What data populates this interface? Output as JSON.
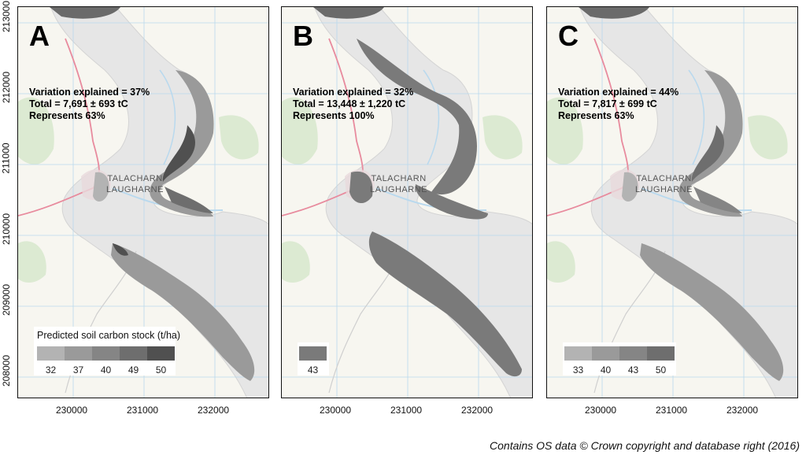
{
  "y_ticks": [
    "213000",
    "212000",
    "211000",
    "210000",
    "209000",
    "208000"
  ],
  "x_ticks": [
    "230000",
    "231000",
    "232000"
  ],
  "place_names": [
    "TALACHARN",
    "LAUGHARNE"
  ],
  "panels": [
    {
      "label": "A",
      "stats": [
        "Variation explained = 37%",
        "Total = 7,691 ± 693 tC",
        "Represents 63%"
      ],
      "legend": {
        "title": "Predicted soil carbon stock (t/ha)",
        "items": [
          {
            "label": "32",
            "color": "#b3b3b3"
          },
          {
            "label": "37",
            "color": "#9a9a9a"
          },
          {
            "label": "40",
            "color": "#858585"
          },
          {
            "label": "49",
            "color": "#6e6e6e"
          },
          {
            "label": "50",
            "color": "#505050"
          }
        ]
      }
    },
    {
      "label": "B",
      "stats": [
        "Variation explained = 32%",
        "Total = 13,448 ± 1,220 tC",
        "Represents 100%"
      ],
      "legend": {
        "title": "",
        "items": [
          {
            "label": "43",
            "color": "#7a7a7a"
          }
        ]
      }
    },
    {
      "label": "C",
      "stats": [
        "Variation explained = 44%",
        "Total = 7,817 ± 699 tC",
        "Represents 63%"
      ],
      "legend": {
        "title": "",
        "items": [
          {
            "label": "33",
            "color": "#b3b3b3"
          },
          {
            "label": "40",
            "color": "#9a9a9a"
          },
          {
            "label": "43",
            "color": "#858585"
          },
          {
            "label": "50",
            "color": "#6e6e6e"
          }
        ]
      }
    }
  ],
  "colors": {
    "map_background": "#f7f6f0",
    "estuary": "#e6e6e6",
    "grid": "#b9d9ee",
    "road": "#e88b9e",
    "green": "#dcead2"
  },
  "credit": "Contains OS data © Crown copyright and database right (2016)"
}
